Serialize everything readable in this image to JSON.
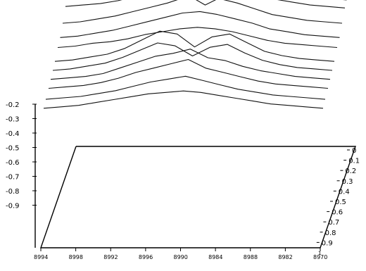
{
  "chart_data": {
    "type": "line",
    "title": "",
    "xlabel": "",
    "ylabel": "",
    "zlabel": "",
    "grid": false,
    "legend": "none",
    "color": "#000000",
    "x_ticks": [
      "8994",
      "8998",
      "8992",
      "8996",
      "8990",
      "8984",
      "8988",
      "8982",
      "8970"
    ],
    "x_tick_values": [
      0,
      1,
      2,
      3,
      4,
      5,
      6,
      7,
      8
    ],
    "x_exponent": "1",
    "y_ticks": [
      "0",
      "0.1",
      "0.2",
      "0.3",
      "0.4",
      "0.5",
      "0.6",
      "0.7",
      "0.8",
      "0.9"
    ],
    "z_ticks": [
      "-0.2",
      "-0.3",
      "-0.4",
      "-0.5",
      "-0.6",
      "-0.7",
      "-0.8",
      "-0.9"
    ],
    "z_tick_values": [
      -0.2,
      -0.3,
      -0.4,
      -0.5,
      -0.6,
      -0.7,
      -0.8,
      -0.9
    ],
    "x": [
      0,
      0.5,
      1,
      1.5,
      2,
      2.5,
      3,
      3.5,
      4,
      4.5,
      5,
      5.5,
      6,
      6.5,
      7,
      7.5,
      8
    ],
    "series": [
      {
        "y": 0.0,
        "values": [
          -0.4,
          -0.4,
          -0.39,
          -0.37,
          -0.34,
          -0.29,
          -0.23,
          -0.16,
          -0.09,
          -0.12,
          -0.24,
          -0.31,
          -0.36,
          -0.38,
          -0.4,
          -0.41,
          -0.42
        ]
      },
      {
        "y": 0.05,
        "values": [
          -0.42,
          -0.42,
          -0.41,
          -0.39,
          -0.36,
          -0.32,
          -0.27,
          -0.2,
          -0.13,
          -0.15,
          -0.27,
          -0.33,
          -0.38,
          -0.4,
          -0.42,
          -0.43,
          -0.44
        ]
      },
      {
        "y": 0.1,
        "values": [
          -0.44,
          -0.43,
          -0.42,
          -0.4,
          -0.37,
          -0.33,
          -0.29,
          -0.25,
          -0.24,
          -0.2,
          -0.29,
          -0.34,
          -0.39,
          -0.41,
          -0.43,
          -0.44,
          -0.45
        ]
      },
      {
        "y": 0.15,
        "values": [
          -0.45,
          -0.44,
          -0.43,
          -0.41,
          -0.38,
          -0.34,
          -0.31,
          -0.34,
          -0.4,
          -0.3,
          -0.31,
          -0.35,
          -0.4,
          -0.42,
          -0.44,
          -0.45,
          -0.46
        ]
      },
      {
        "y": 0.2,
        "values": [
          -0.47,
          -0.46,
          -0.45,
          -0.43,
          -0.4,
          -0.36,
          -0.33,
          -0.38,
          -0.44,
          -0.36,
          -0.33,
          -0.37,
          -0.42,
          -0.44,
          -0.46,
          -0.47,
          -0.48
        ]
      },
      {
        "y": 0.25,
        "values": [
          -0.48,
          -0.47,
          -0.46,
          -0.44,
          -0.41,
          -0.38,
          -0.35,
          -0.4,
          -0.47,
          -0.4,
          -0.35,
          -0.39,
          -0.43,
          -0.45,
          -0.47,
          -0.48,
          -0.49
        ]
      },
      {
        "y": 0.3,
        "values": [
          -0.5,
          -0.49,
          -0.48,
          -0.46,
          -0.43,
          -0.4,
          -0.37,
          -0.42,
          -0.49,
          -0.43,
          -0.37,
          -0.41,
          -0.45,
          -0.47,
          -0.49,
          -0.5,
          -0.51
        ]
      },
      {
        "y": 0.38,
        "values": [
          -0.56,
          -0.55,
          -0.53,
          -0.51,
          -0.48,
          -0.45,
          -0.42,
          -0.38,
          -0.37,
          -0.39,
          -0.42,
          -0.46,
          -0.5,
          -0.52,
          -0.54,
          -0.55,
          -0.56
        ]
      },
      {
        "y": 0.45,
        "values": [
          -0.61,
          -0.6,
          -0.58,
          -0.56,
          -0.53,
          -0.5,
          -0.47,
          -0.44,
          -0.43,
          -0.45,
          -0.48,
          -0.51,
          -0.55,
          -0.57,
          -0.59,
          -0.6,
          -0.61
        ]
      },
      {
        "y": 0.52,
        "values": [
          -0.63,
          -0.62,
          -0.6,
          -0.59,
          -0.57,
          -0.54,
          -0.52,
          -0.5,
          -0.49,
          -0.5,
          -0.52,
          -0.55,
          -0.58,
          -0.6,
          -0.61,
          -0.62,
          -0.63
        ]
      },
      {
        "y": 0.6,
        "values": [
          -0.67,
          -0.66,
          -0.64,
          -0.62,
          -0.58,
          -0.52,
          -0.46,
          -0.48,
          -0.57,
          -0.5,
          -0.48,
          -0.54,
          -0.6,
          -0.63,
          -0.65,
          -0.66,
          -0.67
        ]
      },
      {
        "y": 0.66,
        "values": [
          -0.69,
          -0.68,
          -0.66,
          -0.64,
          -0.6,
          -0.55,
          -0.5,
          -0.52,
          -0.59,
          -0.53,
          -0.51,
          -0.57,
          -0.62,
          -0.65,
          -0.67,
          -0.68,
          -0.69
        ]
      },
      {
        "y": 0.72,
        "values": [
          -0.71,
          -0.7,
          -0.69,
          -0.67,
          -0.63,
          -0.59,
          -0.55,
          -0.53,
          -0.5,
          -0.56,
          -0.58,
          -0.62,
          -0.65,
          -0.67,
          -0.69,
          -0.7,
          -0.71
        ]
      },
      {
        "y": 0.78,
        "values": [
          -0.73,
          -0.72,
          -0.71,
          -0.69,
          -0.66,
          -0.62,
          -0.59,
          -0.56,
          -0.53,
          -0.59,
          -0.62,
          -0.65,
          -0.68,
          -0.7,
          -0.71,
          -0.72,
          -0.73
        ]
      },
      {
        "y": 0.86,
        "values": [
          -0.75,
          -0.74,
          -0.73,
          -0.71,
          -0.69,
          -0.66,
          -0.63,
          -0.61,
          -0.59,
          -0.62,
          -0.65,
          -0.68,
          -0.7,
          -0.72,
          -0.73,
          -0.74,
          -0.75
        ]
      },
      {
        "y": 0.92,
        "values": [
          -0.77,
          -0.76,
          -0.75,
          -0.73,
          -0.71,
          -0.69,
          -0.67,
          -0.66,
          -0.65,
          -0.66,
          -0.68,
          -0.7,
          -0.72,
          -0.74,
          -0.75,
          -0.76,
          -0.77
        ]
      }
    ]
  }
}
